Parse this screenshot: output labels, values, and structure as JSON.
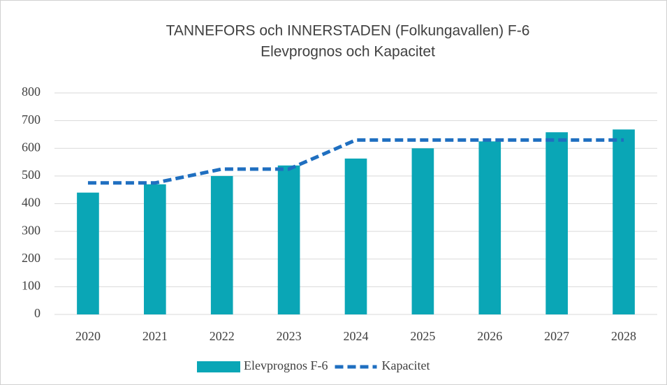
{
  "chart_data": {
    "type": "bar",
    "title": "TANNEFORS och INNERSTADEN (Folkungavallen) F-6",
    "subtitle": "Elevprognos och Kapacitet",
    "categories": [
      "2020",
      "2021",
      "2022",
      "2023",
      "2024",
      "2025",
      "2026",
      "2027",
      "2028"
    ],
    "series": [
      {
        "name": "Elevprognos F-6",
        "type": "bar",
        "color": "#0aa6b6",
        "values": [
          440,
          470,
          500,
          538,
          563,
          600,
          625,
          658,
          668
        ]
      },
      {
        "name": "Kapacitet",
        "type": "line",
        "color": "#1f6fc0",
        "values": [
          475,
          475,
          525,
          525,
          630,
          630,
          630,
          630,
          630
        ]
      }
    ],
    "ylim": [
      0,
      800
    ],
    "yticks": [
      0,
      100,
      200,
      300,
      400,
      500,
      600,
      700,
      800
    ],
    "grid": true,
    "legend": "bottom"
  }
}
